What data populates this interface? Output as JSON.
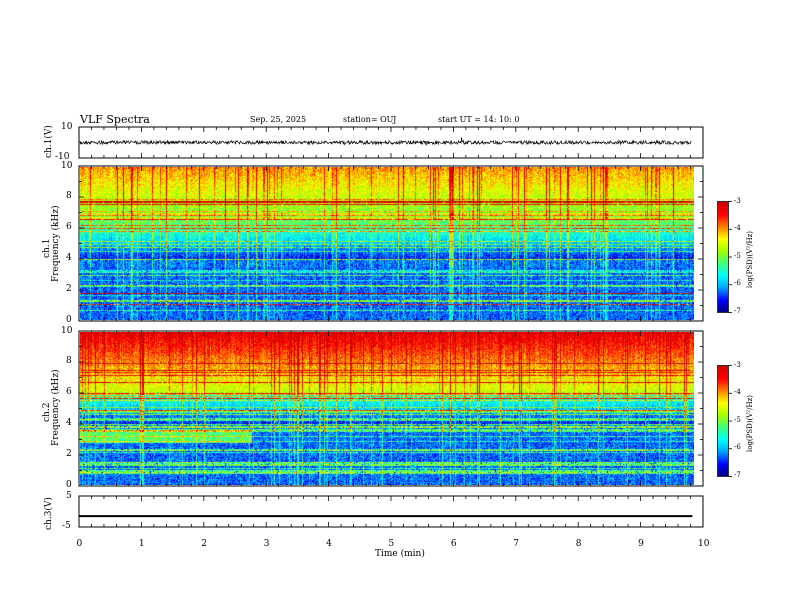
{
  "header": {
    "title": "VLF Spectra",
    "date": "Sep. 25, 2025",
    "station": "station= OUJ",
    "start": "start  UT  =   14: 10: 0"
  },
  "colors": {
    "spectrogram": [
      "#00007f",
      "#0000ff",
      "#00a0ff",
      "#00ffff",
      "#40ff80",
      "#a0ff00",
      "#ffff00",
      "#ff8000",
      "#ff0000",
      "#d00000"
    ]
  },
  "chart_data": [
    {
      "type": "line",
      "name": "ch1-waveform",
      "ylabel": "ch.1(V)",
      "ylim": [
        -10,
        10
      ],
      "ytick_labels": [
        "10",
        "-10"
      ],
      "xlim": [
        0,
        9.83
      ],
      "baseline": 1
    },
    {
      "type": "heatmap",
      "name": "ch1-spectrogram",
      "ylabel_top": "ch.1",
      "ylabel": "Frequency (kHz)",
      "ylim": [
        0,
        10
      ],
      "ytick_labels": [
        "0",
        "2",
        "4",
        "6",
        "8",
        "10"
      ],
      "xlim": [
        0,
        9.83
      ],
      "colorbar": {
        "label": "log(PSD)(V²/Hz)",
        "range": [
          -7,
          -3
        ],
        "tick_labels": [
          "-3",
          "-4",
          "-5",
          "-6",
          "-7"
        ]
      }
    },
    {
      "type": "heatmap",
      "name": "ch2-spectrogram",
      "ylabel_top": "ch.2",
      "ylabel": "Frequency (kHz)",
      "ylim": [
        0,
        10
      ],
      "ytick_labels": [
        "0",
        "2",
        "4",
        "6",
        "8",
        "10"
      ],
      "xlim": [
        0,
        9.83
      ],
      "colorbar": {
        "label": "log(PSD)(V²/Hz)",
        "range": [
          -7,
          -3
        ],
        "tick_labels": [
          "-3",
          "-4",
          "-5",
          "-6",
          "-7"
        ]
      }
    },
    {
      "type": "line",
      "name": "ch3-waveform",
      "ylabel": "ch.3(V)",
      "ylim": [
        -5,
        5
      ],
      "ytick_labels": [
        "5",
        "-5"
      ],
      "xlim": [
        0,
        9.83
      ],
      "x": [
        0,
        7.95,
        7.95,
        9.83
      ],
      "y": [
        -1.5,
        -1.5,
        -1.5,
        -1.5
      ]
    }
  ],
  "xaxis": {
    "xlabel": "Time (min)",
    "xlim": [
      0,
      10
    ],
    "tick_labels": [
      "0",
      "1",
      "2",
      "3",
      "4",
      "5",
      "6",
      "7",
      "8",
      "9",
      "10"
    ]
  }
}
